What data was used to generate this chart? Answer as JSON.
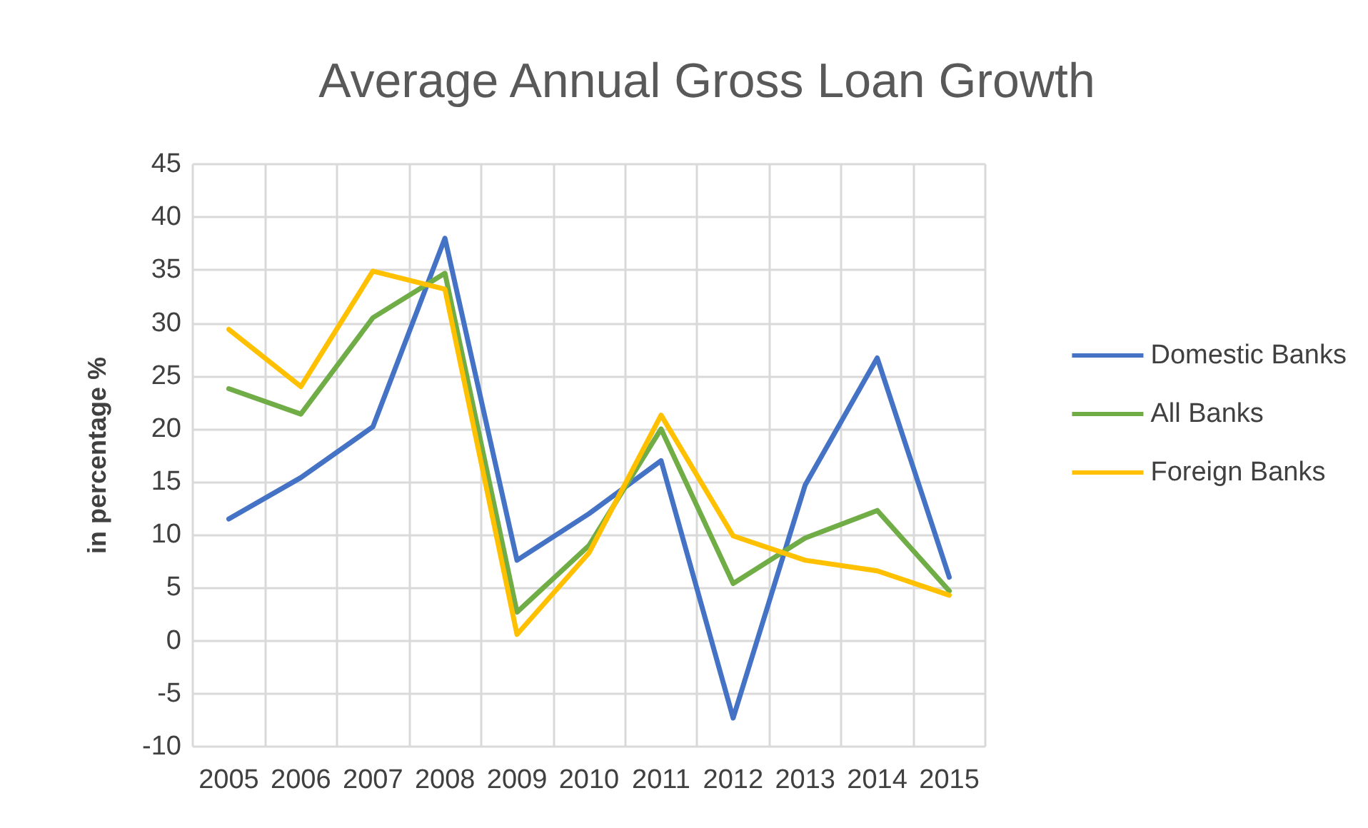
{
  "chart_data": {
    "type": "line",
    "title": "Average Annual Gross Loan Growth",
    "ylabel": "in percentage %",
    "categories": [
      "2005",
      "2006",
      "2007",
      "2008",
      "2009",
      "2010",
      "2011",
      "2012",
      "2013",
      "2014",
      "2015"
    ],
    "series": [
      {
        "name": "Domestic Banks",
        "color": "#4472c4",
        "values": [
          11.5,
          15.4,
          20.2,
          38,
          7.6,
          12,
          17,
          -7.3,
          14.7,
          26.7,
          6
        ]
      },
      {
        "name": "All Banks",
        "color": "#70ad47",
        "values": [
          23.8,
          21.4,
          30.5,
          34.7,
          2.7,
          9,
          20,
          5.4,
          9.7,
          12.3,
          4.7
        ]
      },
      {
        "name": "Foreign Banks",
        "color": "#ffc000",
        "values": [
          29.4,
          24,
          34.9,
          33.2,
          0.6,
          8.3,
          21.3,
          9.9,
          7.6,
          6.6,
          4.3
        ]
      }
    ],
    "ylim": [
      -10,
      45
    ],
    "yticks": [
      -10,
      -5,
      0,
      5,
      10,
      15,
      20,
      25,
      30,
      35,
      40,
      45
    ],
    "grid": true,
    "legend": "right",
    "marker": "none",
    "line_style": "solid"
  }
}
